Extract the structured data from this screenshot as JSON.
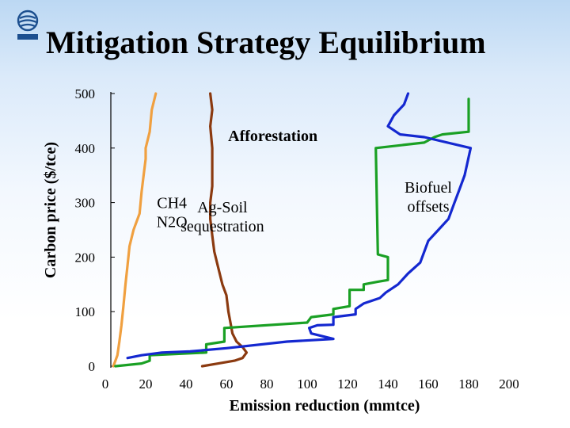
{
  "slide": {
    "title": "Mitigation Strategy Equilibrium"
  },
  "logo": {
    "icon": "iiasa-logo-icon",
    "color": "#1c4f8f"
  },
  "chart_data": {
    "type": "line",
    "title": "",
    "xlabel": "Emission reduction (mmtce)",
    "ylabel": "Carbon price ($/tce)",
    "xlim": [
      0,
      200
    ],
    "ylim": [
      0,
      500
    ],
    "x_ticks": [
      0,
      20,
      40,
      60,
      80,
      100,
      120,
      140,
      160,
      180,
      200
    ],
    "y_ticks": [
      0,
      100,
      200,
      300,
      400,
      500
    ],
    "grid": false,
    "legend": "none",
    "annotations": [
      {
        "lines": [
          "CH4",
          "N2O"
        ],
        "x": 33,
        "y": 290
      },
      {
        "lines": [
          "Ag-Soil",
          "sequestration"
        ],
        "x": 58,
        "y": 282
      },
      {
        "lines": [
          "Afforestation"
        ],
        "x": 83,
        "y": 413,
        "bold": true
      },
      {
        "lines": [
          "Biofuel",
          "offsets"
        ],
        "x": 160,
        "y": 318
      }
    ],
    "series": [
      {
        "color": "#f0a040",
        "points": [
          [
            4,
            0
          ],
          [
            5,
            10
          ],
          [
            6,
            20
          ],
          [
            7,
            45
          ],
          [
            8,
            75
          ],
          [
            9,
            110
          ],
          [
            10,
            150
          ],
          [
            11,
            185
          ],
          [
            12,
            220
          ],
          [
            14,
            250
          ],
          [
            17,
            280
          ],
          [
            18,
            320
          ],
          [
            19,
            350
          ],
          [
            20,
            380
          ],
          [
            20,
            400
          ],
          [
            22,
            430
          ],
          [
            23,
            470
          ],
          [
            25,
            500
          ]
        ]
      },
      {
        "color": "#8b3a10",
        "points": [
          [
            48,
            0
          ],
          [
            56,
            5
          ],
          [
            64,
            10
          ],
          [
            68,
            15
          ],
          [
            70,
            25
          ],
          [
            68,
            35
          ],
          [
            65,
            45
          ],
          [
            63,
            60
          ],
          [
            62,
            80
          ],
          [
            61,
            100
          ],
          [
            60,
            130
          ],
          [
            58,
            150
          ],
          [
            56,
            180
          ],
          [
            54,
            210
          ],
          [
            53,
            240
          ],
          [
            52,
            270
          ],
          [
            52,
            300
          ],
          [
            53,
            330
          ],
          [
            53,
            360
          ],
          [
            53,
            400
          ],
          [
            52,
            440
          ],
          [
            53,
            470
          ],
          [
            52,
            500
          ]
        ]
      },
      {
        "color": "#1aa024",
        "points": [
          [
            5,
            0
          ],
          [
            18,
            5
          ],
          [
            22,
            10
          ],
          [
            22,
            20
          ],
          [
            50,
            25
          ],
          [
            50,
            40
          ],
          [
            59,
            45
          ],
          [
            59,
            70
          ],
          [
            100,
            80
          ],
          [
            102,
            90
          ],
          [
            113,
            95
          ],
          [
            113,
            105
          ],
          [
            121,
            110
          ],
          [
            121,
            140
          ],
          [
            128,
            140
          ],
          [
            128,
            150
          ],
          [
            135,
            155
          ],
          [
            140,
            158
          ],
          [
            140,
            200
          ],
          [
            135,
            205
          ],
          [
            134,
            400
          ],
          [
            158,
            410
          ],
          [
            163,
            420
          ],
          [
            167,
            425
          ],
          [
            180,
            430
          ],
          [
            180,
            490
          ]
        ]
      },
      {
        "color": "#1428d0",
        "points": [
          [
            11,
            15
          ],
          [
            18,
            20
          ],
          [
            28,
            25
          ],
          [
            42,
            27
          ],
          [
            60,
            33
          ],
          [
            90,
            45
          ],
          [
            113,
            50
          ],
          [
            102,
            60
          ],
          [
            101,
            70
          ],
          [
            105,
            75
          ],
          [
            113,
            76
          ],
          [
            113,
            90
          ],
          [
            124,
            95
          ],
          [
            124,
            105
          ],
          [
            128,
            115
          ],
          [
            136,
            125
          ],
          [
            139,
            135
          ],
          [
            145,
            150
          ],
          [
            150,
            170
          ],
          [
            156,
            190
          ],
          [
            160,
            230
          ],
          [
            165,
            250
          ],
          [
            170,
            270
          ],
          [
            173,
            300
          ],
          [
            175,
            320
          ],
          [
            178,
            350
          ],
          [
            181,
            400
          ],
          [
            158,
            420
          ],
          [
            146,
            425
          ],
          [
            140,
            440
          ],
          [
            143,
            460
          ],
          [
            148,
            480
          ],
          [
            150,
            500
          ]
        ]
      }
    ]
  }
}
